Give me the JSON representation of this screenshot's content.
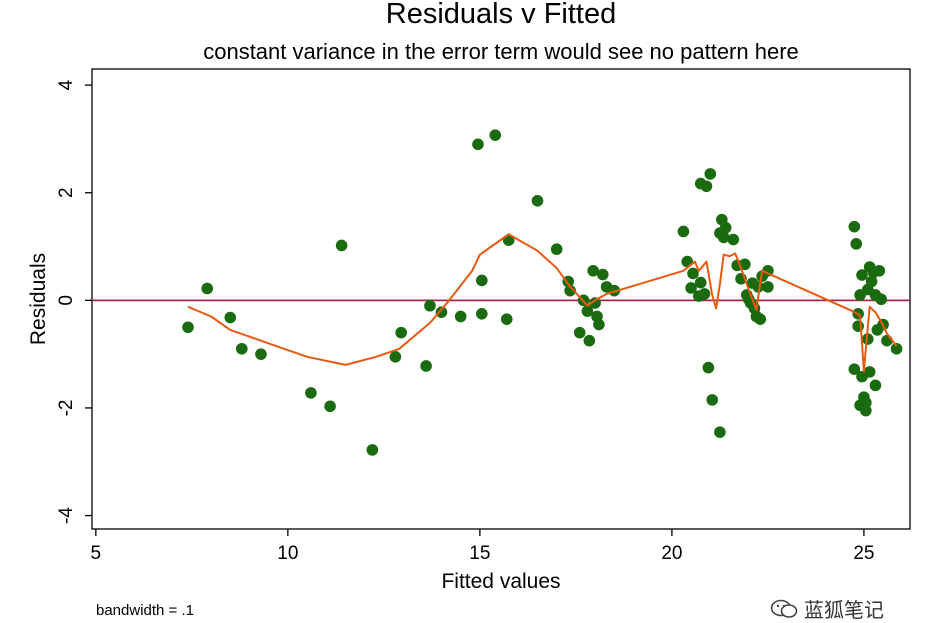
{
  "chart_data": {
    "type": "scatter",
    "title": "Residuals v Fitted",
    "subtitle": "constant variance in the error term would see no pattern here",
    "xlabel": "Fitted values",
    "ylabel": "Residuals",
    "xlim": [
      4.9,
      26.2
    ],
    "ylim": [
      -4.25,
      4.3
    ],
    "xticks": [
      5,
      10,
      15,
      20,
      25
    ],
    "yticks": [
      -4,
      -2,
      0,
      2,
      4
    ],
    "grid": false,
    "reference_line": {
      "y": 0,
      "color": "#a3284b"
    },
    "colors": {
      "points": "#1a6b0f",
      "smooth": "#e85a12",
      "axis": "#000000"
    },
    "points": [
      [
        7.4,
        -0.5
      ],
      [
        7.9,
        0.22
      ],
      [
        8.5,
        -0.32
      ],
      [
        8.8,
        -0.9
      ],
      [
        9.3,
        -1.0
      ],
      [
        10.6,
        -1.72
      ],
      [
        11.1,
        -1.97
      ],
      [
        11.4,
        1.02
      ],
      [
        12.2,
        -2.78
      ],
      [
        12.8,
        -1.05
      ],
      [
        12.95,
        -0.6
      ],
      [
        13.6,
        -1.22
      ],
      [
        13.7,
        -0.1
      ],
      [
        14.0,
        -0.22
      ],
      [
        14.5,
        -0.3
      ],
      [
        14.95,
        2.9
      ],
      [
        15.05,
        0.37
      ],
      [
        15.05,
        -0.25
      ],
      [
        15.4,
        3.07
      ],
      [
        15.7,
        -0.35
      ],
      [
        15.75,
        1.12
      ],
      [
        16.5,
        1.85
      ],
      [
        17.0,
        0.95
      ],
      [
        17.3,
        0.35
      ],
      [
        17.35,
        0.18
      ],
      [
        17.6,
        -0.6
      ],
      [
        17.7,
        0.0
      ],
      [
        17.8,
        -0.2
      ],
      [
        17.85,
        -0.75
      ],
      [
        17.95,
        0.55
      ],
      [
        18.0,
        -0.05
      ],
      [
        18.05,
        -0.3
      ],
      [
        18.1,
        -0.45
      ],
      [
        18.2,
        0.48
      ],
      [
        18.3,
        0.25
      ],
      [
        18.5,
        0.18
      ],
      [
        20.3,
        1.28
      ],
      [
        20.4,
        0.72
      ],
      [
        20.5,
        0.23
      ],
      [
        20.55,
        0.5
      ],
      [
        20.7,
        0.08
      ],
      [
        20.75,
        0.33
      ],
      [
        20.75,
        2.17
      ],
      [
        20.85,
        0.12
      ],
      [
        20.9,
        2.12
      ],
      [
        20.95,
        -1.25
      ],
      [
        21.0,
        2.35
      ],
      [
        21.05,
        -1.85
      ],
      [
        21.25,
        -2.45
      ],
      [
        21.25,
        1.25
      ],
      [
        21.3,
        1.5
      ],
      [
        21.35,
        1.17
      ],
      [
        21.4,
        1.35
      ],
      [
        21.6,
        1.13
      ],
      [
        21.7,
        0.65
      ],
      [
        21.8,
        0.4
      ],
      [
        21.9,
        0.67
      ],
      [
        21.95,
        0.1
      ],
      [
        22.0,
        0.02
      ],
      [
        22.05,
        -0.05
      ],
      [
        22.1,
        0.32
      ],
      [
        22.15,
        -0.15
      ],
      [
        22.2,
        -0.3
      ],
      [
        22.25,
        0.25
      ],
      [
        22.3,
        -0.35
      ],
      [
        22.35,
        0.45
      ],
      [
        22.5,
        0.25
      ],
      [
        22.5,
        0.55
      ],
      [
        24.75,
        1.37
      ],
      [
        24.75,
        -1.28
      ],
      [
        24.8,
        1.05
      ],
      [
        24.85,
        -0.25
      ],
      [
        24.85,
        -0.48
      ],
      [
        24.9,
        0.1
      ],
      [
        24.9,
        -1.95
      ],
      [
        24.95,
        0.47
      ],
      [
        24.95,
        -1.42
      ],
      [
        25.0,
        -1.8
      ],
      [
        25.05,
        -1.9
      ],
      [
        25.05,
        -2.05
      ],
      [
        25.1,
        0.2
      ],
      [
        25.1,
        -0.72
      ],
      [
        25.15,
        0.62
      ],
      [
        25.15,
        -1.33
      ],
      [
        25.2,
        0.35
      ],
      [
        25.25,
        0.52
      ],
      [
        25.3,
        -1.58
      ],
      [
        25.3,
        0.1
      ],
      [
        25.35,
        -0.55
      ],
      [
        25.4,
        0.55
      ],
      [
        25.45,
        0.02
      ],
      [
        25.5,
        -0.45
      ],
      [
        25.6,
        -0.75
      ],
      [
        25.85,
        -0.9
      ]
    ],
    "smooth": [
      [
        7.4,
        -0.12
      ],
      [
        8.0,
        -0.3
      ],
      [
        8.5,
        -0.55
      ],
      [
        9.5,
        -0.8
      ],
      [
        10.5,
        -1.05
      ],
      [
        11.5,
        -1.2
      ],
      [
        12.3,
        -1.05
      ],
      [
        12.9,
        -0.9
      ],
      [
        13.7,
        -0.42
      ],
      [
        14.2,
        0.0
      ],
      [
        14.8,
        0.55
      ],
      [
        15.0,
        0.85
      ],
      [
        15.3,
        1.0
      ],
      [
        15.75,
        1.23
      ],
      [
        16.5,
        0.92
      ],
      [
        17.0,
        0.6
      ],
      [
        17.3,
        0.3
      ],
      [
        17.8,
        -0.1
      ],
      [
        18.0,
        0.0
      ],
      [
        18.3,
        0.12
      ],
      [
        20.3,
        0.55
      ],
      [
        20.6,
        0.72
      ],
      [
        20.7,
        0.55
      ],
      [
        20.9,
        0.72
      ],
      [
        21.05,
        0.1
      ],
      [
        21.15,
        -0.15
      ],
      [
        21.25,
        0.3
      ],
      [
        21.35,
        0.85
      ],
      [
        21.5,
        0.82
      ],
      [
        21.65,
        0.87
      ],
      [
        21.8,
        0.6
      ],
      [
        22.0,
        0.2
      ],
      [
        22.2,
        -0.18
      ],
      [
        22.35,
        0.55
      ],
      [
        24.7,
        -0.2
      ],
      [
        24.9,
        -0.28
      ],
      [
        25.0,
        -1.32
      ],
      [
        25.05,
        -0.9
      ],
      [
        25.15,
        -0.12
      ],
      [
        25.3,
        -0.22
      ],
      [
        25.45,
        -0.4
      ],
      [
        25.6,
        -0.62
      ],
      [
        25.85,
        -0.85
      ]
    ]
  },
  "footnote": "bandwidth = .1",
  "watermark": {
    "text": "蓝狐笔记",
    "icon": "wechat-icon"
  }
}
